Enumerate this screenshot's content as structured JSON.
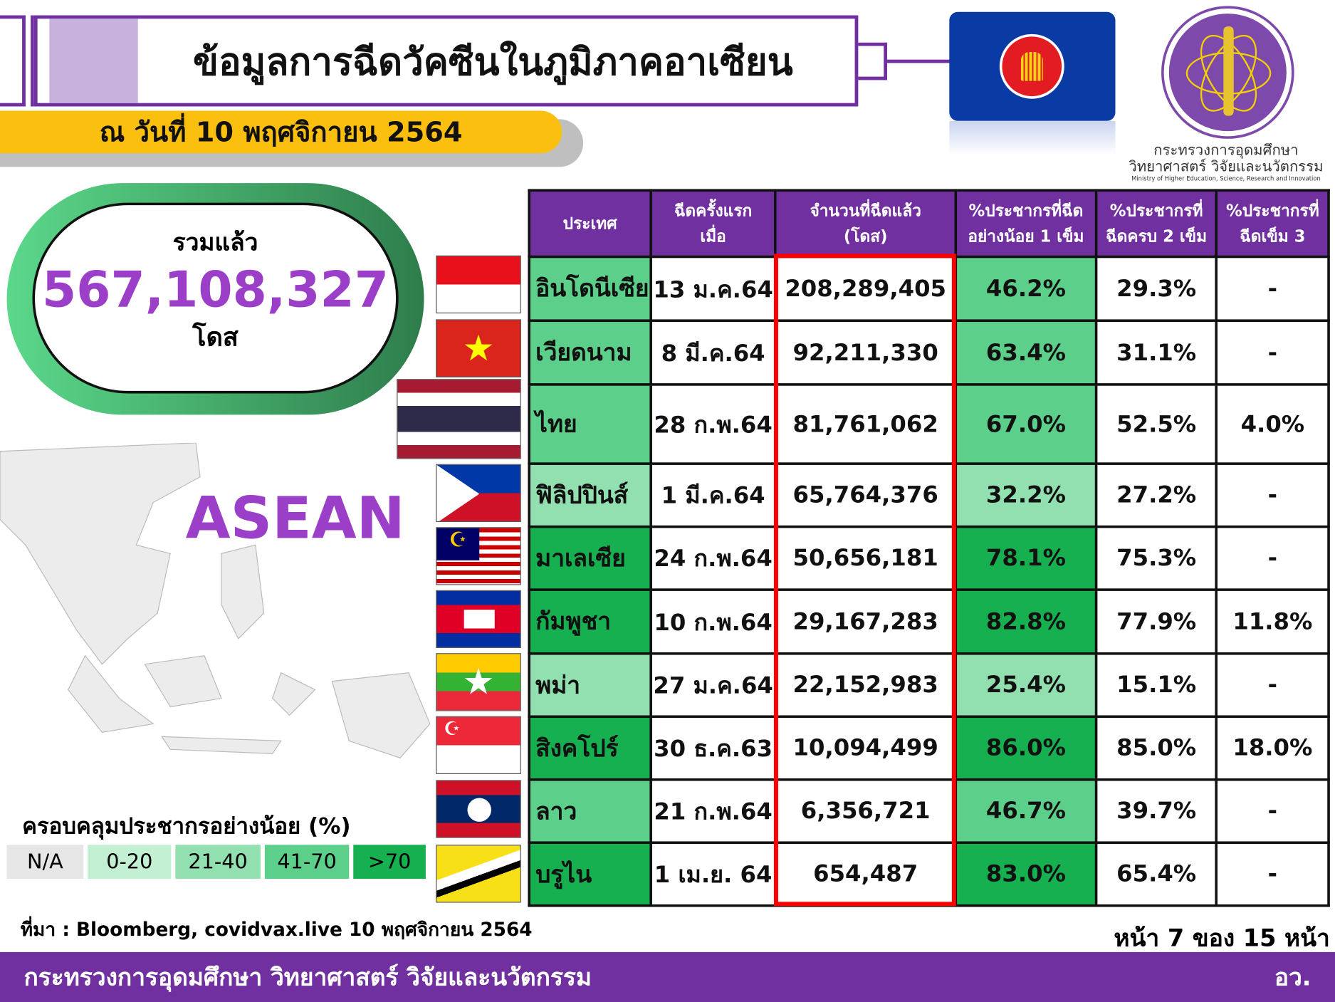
{
  "header": {
    "title": "ข้อมูลการฉีดวัคซีนในภูมิภาคอาเซียน",
    "date": "ณ วันที่ 10 พฤศจิกายน 2564"
  },
  "logo": {
    "name_th_1": "กระทรวงการอุดมศึกษา",
    "name_th_2": "วิทยาศาสตร์ วิจัยและนวัตกรรม",
    "name_en": "Ministry of Higher Education, Science, Research and Innovation"
  },
  "total": {
    "label": "รวมแล้ว",
    "value": "567,108,327",
    "unit": "โดส"
  },
  "map_label": "ASEAN",
  "legend": {
    "title": "ครอบคลุมประชากรอย่างน้อย (%)",
    "items": [
      {
        "label": "N/A",
        "color": "#e6e6e6"
      },
      {
        "label": "0-20",
        "color": "#c3efd3"
      },
      {
        "label": "21-40",
        "color": "#92e0b0"
      },
      {
        "label": "41-70",
        "color": "#5ccf8a"
      },
      {
        "label": ">70",
        "color": "#16b050"
      }
    ]
  },
  "table": {
    "headers": [
      "ประเทศ",
      "ฉีดครั้งแรก\nเมื่อ",
      "จำนวนที่ฉีดแล้ว\n(โดส)",
      "%ประชากรที่ฉีด\nอย่างน้อย 1 เข็ม",
      "%ประชากรที่\nฉีดครบ 2 เข็ม",
      "%ประชากรที่\nฉีดเข็ม 3"
    ],
    "rows": [
      {
        "country": "อินโดนีเซีย",
        "first": "13 ม.ค.64",
        "doses": "208,289,405",
        "p1": "46.2%",
        "p2": "29.3%",
        "p3": "-",
        "flag": "indonesia",
        "color": "#5ccf8a"
      },
      {
        "country": "เวียดนาม",
        "first": "8 มี.ค.64",
        "doses": "92,211,330",
        "p1": "63.4%",
        "p2": "31.1%",
        "p3": "-",
        "flag": "vietnam",
        "color": "#5ccf8a"
      },
      {
        "country": "ไทย",
        "first": "28 ก.พ.64",
        "doses": "81,761,062",
        "p1": "67.0%",
        "p2": "52.5%",
        "p3": "4.0%",
        "flag": "thailand",
        "color": "#5ccf8a"
      },
      {
        "country": "ฟิลิปปินส์",
        "first": "1 มี.ค.64",
        "doses": "65,764,376",
        "p1": "32.2%",
        "p2": "27.2%",
        "p3": "-",
        "flag": "philippines",
        "color": "#92e0b0"
      },
      {
        "country": "มาเลเซีย",
        "first": "24 ก.พ.64",
        "doses": "50,656,181",
        "p1": "78.1%",
        "p2": "75.3%",
        "p3": "-",
        "flag": "malaysia",
        "color": "#16b050"
      },
      {
        "country": "กัมพูชา",
        "first": "10 ก.พ.64",
        "doses": "29,167,283",
        "p1": "82.8%",
        "p2": "77.9%",
        "p3": "11.8%",
        "flag": "cambodia",
        "color": "#16b050"
      },
      {
        "country": "พม่า",
        "first": "27 ม.ค.64",
        "doses": "22,152,983",
        "p1": "25.4%",
        "p2": "15.1%",
        "p3": "-",
        "flag": "myanmar",
        "color": "#92e0b0"
      },
      {
        "country": "สิงคโปร์",
        "first": "30 ธ.ค.63",
        "doses": "10,094,499",
        "p1": "86.0%",
        "p2": "85.0%",
        "p3": "18.0%",
        "flag": "singapore",
        "color": "#16b050"
      },
      {
        "country": "ลาว",
        "first": "21 ก.พ.64",
        "doses": "6,356,721",
        "p1": "46.7%",
        "p2": "39.7%",
        "p3": "-",
        "flag": "laos",
        "color": "#5ccf8a"
      },
      {
        "country": "บรูไน",
        "first": "1 เม.ย. 64",
        "doses": "654,487",
        "p1": "83.0%",
        "p2": "65.4%",
        "p3": "-",
        "flag": "brunei",
        "color": "#16b050"
      }
    ]
  },
  "source": "ที่มา : Bloomberg, covidvax.live 10 พฤศจิกายน 2564",
  "pager": "หน้า 7 ของ 15 หน้า",
  "footer": {
    "left": "กระทรวงการอุดมศึกษา วิทยาศาสตร์ วิจัยและนวัตกรรม",
    "right": "อว."
  }
}
